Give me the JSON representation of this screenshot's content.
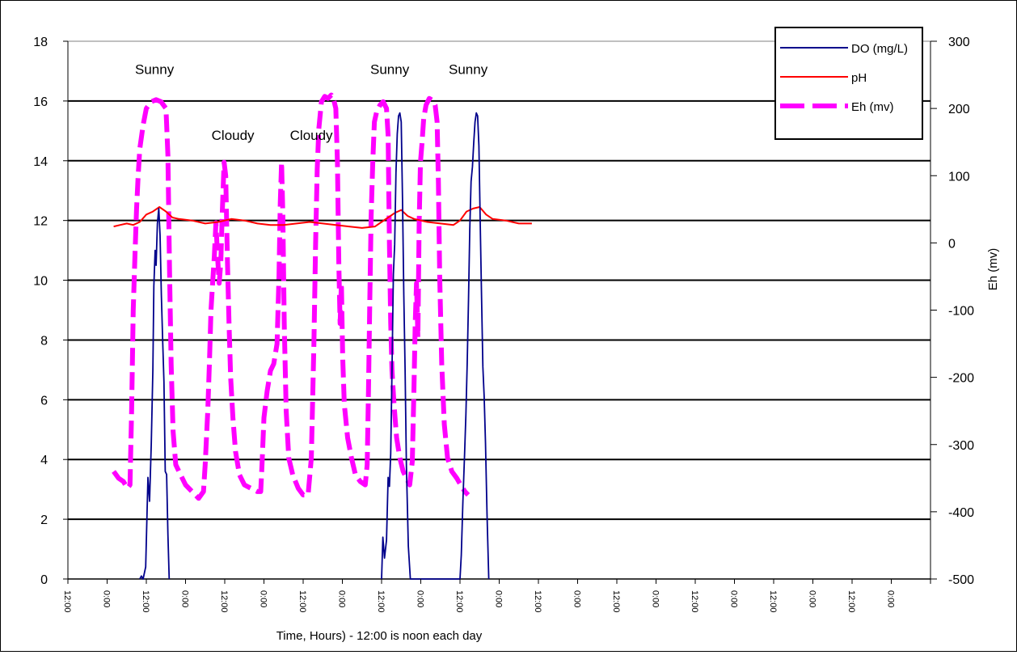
{
  "chart_data": {
    "type": "line",
    "xlabel": "Time, Hours) - 12:00 is noon each day",
    "y2label": "Eh (mv)",
    "ylim": [
      0,
      18
    ],
    "y2lim": [
      -500,
      300
    ],
    "yticks": [
      "0",
      "2",
      "4",
      "6",
      "8",
      "10",
      "12",
      "14",
      "16",
      "18"
    ],
    "y2ticks": [
      "-500",
      "-400",
      "-300",
      "-200",
      "-100",
      "0",
      "100",
      "200",
      "300"
    ],
    "x_range_hours": [
      0,
      264
    ],
    "xticks": [
      {
        "h": 0,
        "label": "12:00"
      },
      {
        "h": 12,
        "label": "0:00"
      },
      {
        "h": 24,
        "label": "12:00"
      },
      {
        "h": 36,
        "label": "0:00"
      },
      {
        "h": 48,
        "label": "12:00"
      },
      {
        "h": 60,
        "label": "0:00"
      },
      {
        "h": 72,
        "label": "12:00"
      },
      {
        "h": 84,
        "label": "0:00"
      },
      {
        "h": 96,
        "label": "12:00"
      },
      {
        "h": 108,
        "label": "0:00"
      },
      {
        "h": 120,
        "label": "12:00"
      },
      {
        "h": 132,
        "label": "0:00"
      },
      {
        "h": 144,
        "label": "12:00"
      },
      {
        "h": 156,
        "label": "0:00"
      },
      {
        "h": 168,
        "label": "12:00"
      },
      {
        "h": 180,
        "label": "0:00"
      },
      {
        "h": 192,
        "label": "12:00"
      },
      {
        "h": 204,
        "label": "0:00"
      },
      {
        "h": 216,
        "label": "12:00"
      },
      {
        "h": 228,
        "label": "0:00"
      },
      {
        "h": 240,
        "label": "12:00"
      },
      {
        "h": 252,
        "label": "0:00"
      }
    ],
    "grid": "horizontal",
    "legend": "top-right",
    "annotations": [
      {
        "text": "Sunny",
        "h": 26.5,
        "y": 16.9
      },
      {
        "text": "Cloudy",
        "h": 50.5,
        "y": 14.7
      },
      {
        "text": "Cloudy",
        "h": 74.5,
        "y": 14.7
      },
      {
        "text": "Sunny",
        "h": 98.5,
        "y": 16.9
      },
      {
        "text": "Sunny",
        "h": 122.5,
        "y": 16.9
      }
    ],
    "series": [
      {
        "name": "DO (mg/L)",
        "color": "#00008b",
        "axis": "left",
        "style": "solid",
        "points": [
          [
            22,
            0
          ],
          [
            22.5,
            0.1
          ],
          [
            23,
            0
          ],
          [
            23.8,
            0.4
          ],
          [
            24.5,
            3.4
          ],
          [
            25,
            2.6
          ],
          [
            25.5,
            4.5
          ],
          [
            26,
            7
          ],
          [
            26.3,
            9.8
          ],
          [
            26.7,
            11
          ],
          [
            27,
            10.5
          ],
          [
            27.4,
            11.9
          ],
          [
            27.8,
            12.4
          ],
          [
            28.2,
            11.5
          ],
          [
            28.6,
            9.5
          ],
          [
            29,
            8
          ],
          [
            29.4,
            6.6
          ],
          [
            29.8,
            3.6
          ],
          [
            30.2,
            3.5
          ],
          [
            30.6,
            1.5
          ],
          [
            31,
            0
          ],
          [
            96,
            0
          ],
          [
            96.4,
            1.4
          ],
          [
            96.9,
            0.7
          ],
          [
            97.5,
            1.3
          ],
          [
            98,
            3.4
          ],
          [
            98.4,
            3.1
          ],
          [
            98.8,
            4.2
          ],
          [
            99.2,
            7
          ],
          [
            99.6,
            10.2
          ],
          [
            100,
            11.2
          ],
          [
            100.4,
            13.6
          ],
          [
            100.8,
            14.9
          ],
          [
            101.2,
            15.5
          ],
          [
            101.6,
            15.6
          ],
          [
            102,
            15.3
          ],
          [
            102.4,
            12.7
          ],
          [
            102.8,
            9.5
          ],
          [
            103.2,
            7
          ],
          [
            103.6,
            3.8
          ],
          [
            104.2,
            1.1
          ],
          [
            104.8,
            0
          ],
          [
            120,
            0
          ],
          [
            120.4,
            0.8
          ],
          [
            120.9,
            2.6
          ],
          [
            121.4,
            4.2
          ],
          [
            121.8,
            5.5
          ],
          [
            122.2,
            7.2
          ],
          [
            122.6,
            9.3
          ],
          [
            123,
            11.7
          ],
          [
            123.4,
            13.3
          ],
          [
            123.8,
            13.8
          ],
          [
            124.2,
            14.6
          ],
          [
            124.6,
            15.3
          ],
          [
            125,
            15.6
          ],
          [
            125.4,
            15.5
          ],
          [
            125.8,
            14.5
          ],
          [
            126.2,
            11.8
          ],
          [
            126.6,
            9.4
          ],
          [
            127,
            7.1
          ],
          [
            127.4,
            6.1
          ],
          [
            127.8,
            4.6
          ],
          [
            128.3,
            2.1
          ],
          [
            128.8,
            0
          ]
        ]
      },
      {
        "name": "pH",
        "color": "#ff0000",
        "axis": "left",
        "style": "solid",
        "points": [
          [
            14,
            11.8
          ],
          [
            16,
            11.85
          ],
          [
            18,
            11.9
          ],
          [
            20,
            11.85
          ],
          [
            22,
            11.95
          ],
          [
            24,
            12.2
          ],
          [
            26,
            12.3
          ],
          [
            28,
            12.45
          ],
          [
            30,
            12.3
          ],
          [
            32,
            12.1
          ],
          [
            34,
            12.05
          ],
          [
            38,
            12.0
          ],
          [
            42,
            11.9
          ],
          [
            46,
            11.95
          ],
          [
            50,
            12.05
          ],
          [
            54,
            12.0
          ],
          [
            58,
            11.9
          ],
          [
            62,
            11.85
          ],
          [
            66,
            11.85
          ],
          [
            70,
            11.9
          ],
          [
            74,
            11.95
          ],
          [
            78,
            11.9
          ],
          [
            82,
            11.85
          ],
          [
            86,
            11.8
          ],
          [
            90,
            11.75
          ],
          [
            94,
            11.8
          ],
          [
            96,
            11.95
          ],
          [
            98,
            12.1
          ],
          [
            100,
            12.25
          ],
          [
            102,
            12.35
          ],
          [
            104,
            12.15
          ],
          [
            106,
            12.05
          ],
          [
            110,
            11.95
          ],
          [
            114,
            11.9
          ],
          [
            118,
            11.85
          ],
          [
            120,
            12.0
          ],
          [
            122,
            12.3
          ],
          [
            124,
            12.4
          ],
          [
            126,
            12.45
          ],
          [
            128,
            12.2
          ],
          [
            130,
            12.05
          ],
          [
            134,
            12.0
          ],
          [
            138,
            11.9
          ],
          [
            142,
            11.9
          ]
        ]
      },
      {
        "name": "Eh (mv)",
        "color": "#ff00ff",
        "axis": "right",
        "style": "dashed",
        "points": [
          [
            14,
            -340
          ],
          [
            15.5,
            -350
          ],
          [
            17,
            -355
          ],
          [
            18.2,
            -365
          ],
          [
            19,
            -360
          ],
          [
            19.5,
            -250
          ],
          [
            20,
            -100
          ],
          [
            20.5,
            -20
          ],
          [
            21,
            50
          ],
          [
            21.5,
            100
          ],
          [
            22,
            140
          ],
          [
            23,
            175
          ],
          [
            24,
            200
          ],
          [
            25.5,
            210
          ],
          [
            27,
            213
          ],
          [
            28.5,
            210
          ],
          [
            30,
            200
          ],
          [
            30.6,
            130
          ],
          [
            31.1,
            -40
          ],
          [
            31.6,
            -180
          ],
          [
            32.2,
            -280
          ],
          [
            33,
            -330
          ],
          [
            34.5,
            -345
          ],
          [
            36,
            -360
          ],
          [
            38,
            -370
          ],
          [
            40,
            -380
          ],
          [
            41.5,
            -370
          ],
          [
            42,
            -330
          ],
          [
            42.8,
            -250
          ],
          [
            43.3,
            -180
          ],
          [
            43.8,
            -100
          ],
          [
            44.3,
            -60
          ],
          [
            44.8,
            -20
          ],
          [
            45.3,
            30
          ],
          [
            45.8,
            -20
          ],
          [
            46.3,
            -60
          ],
          [
            46.8,
            -30
          ],
          [
            47.2,
            40
          ],
          [
            47.8,
            120
          ],
          [
            48.3,
            100
          ],
          [
            48.8,
            -20
          ],
          [
            49.3,
            -120
          ],
          [
            49.8,
            -200
          ],
          [
            50.5,
            -260
          ],
          [
            51.3,
            -310
          ],
          [
            52.5,
            -345
          ],
          [
            54,
            -360
          ],
          [
            56,
            -365
          ],
          [
            58,
            -370
          ],
          [
            59,
            -370
          ],
          [
            59.4,
            -330
          ],
          [
            60,
            -260
          ],
          [
            61,
            -220
          ],
          [
            62,
            -190
          ],
          [
            63,
            -180
          ],
          [
            64,
            -150
          ],
          [
            64.6,
            -50
          ],
          [
            65,
            60
          ],
          [
            65.4,
            120
          ],
          [
            65.8,
            40
          ],
          [
            66.2,
            -120
          ],
          [
            66.8,
            -250
          ],
          [
            67.6,
            -320
          ],
          [
            68.8,
            -345
          ],
          [
            70.5,
            -365
          ],
          [
            72,
            -375
          ],
          [
            73.5,
            -375
          ],
          [
            74.5,
            -320
          ],
          [
            75.3,
            -150
          ],
          [
            75.8,
            0
          ],
          [
            76.3,
            110
          ],
          [
            76.8,
            170
          ],
          [
            77.6,
            210
          ],
          [
            78.6,
            218
          ],
          [
            79.6,
            215
          ],
          [
            80.6,
            220
          ],
          [
            81.4,
            212
          ],
          [
            82,
            200
          ],
          [
            82.5,
            120
          ],
          [
            82.9,
            -30
          ],
          [
            83.3,
            -120
          ],
          [
            83.7,
            -60
          ],
          [
            84.1,
            -170
          ],
          [
            84.6,
            -240
          ],
          [
            85.6,
            -290
          ],
          [
            86.8,
            -320
          ],
          [
            88,
            -345
          ],
          [
            89.5,
            -355
          ],
          [
            91,
            -360
          ],
          [
            91.6,
            -330
          ],
          [
            92,
            -220
          ],
          [
            92.4,
            -80
          ],
          [
            92.8,
            40
          ],
          [
            93.3,
            120
          ],
          [
            93.8,
            180
          ],
          [
            94.5,
            195
          ],
          [
            95.5,
            205
          ],
          [
            96.5,
            210
          ],
          [
            97.5,
            200
          ],
          [
            98,
            160
          ],
          [
            98.4,
            0
          ],
          [
            98.8,
            -120
          ],
          [
            99.2,
            -190
          ],
          [
            99.8,
            -240
          ],
          [
            100.6,
            -290
          ],
          [
            101.6,
            -320
          ],
          [
            102.6,
            -340
          ],
          [
            103.6,
            -350
          ],
          [
            104.6,
            -360
          ],
          [
            105.4,
            -325
          ],
          [
            105.9,
            -220
          ],
          [
            106.3,
            -120
          ],
          [
            106.7,
            -60
          ],
          [
            107.1,
            -140
          ],
          [
            107.5,
            30
          ],
          [
            107.9,
            120
          ],
          [
            108.4,
            150
          ],
          [
            108.9,
            185
          ],
          [
            109.6,
            205
          ],
          [
            110.6,
            215
          ],
          [
            111.6,
            212
          ],
          [
            112.4,
            205
          ],
          [
            113,
            180
          ],
          [
            113.4,
            90
          ],
          [
            113.8,
            -50
          ],
          [
            114.4,
            -180
          ],
          [
            115.2,
            -270
          ],
          [
            116.2,
            -320
          ],
          [
            117.5,
            -340
          ],
          [
            119,
            -350
          ],
          [
            120.2,
            -360
          ],
          [
            121.5,
            -370
          ],
          [
            122.5,
            -375
          ]
        ]
      }
    ]
  }
}
